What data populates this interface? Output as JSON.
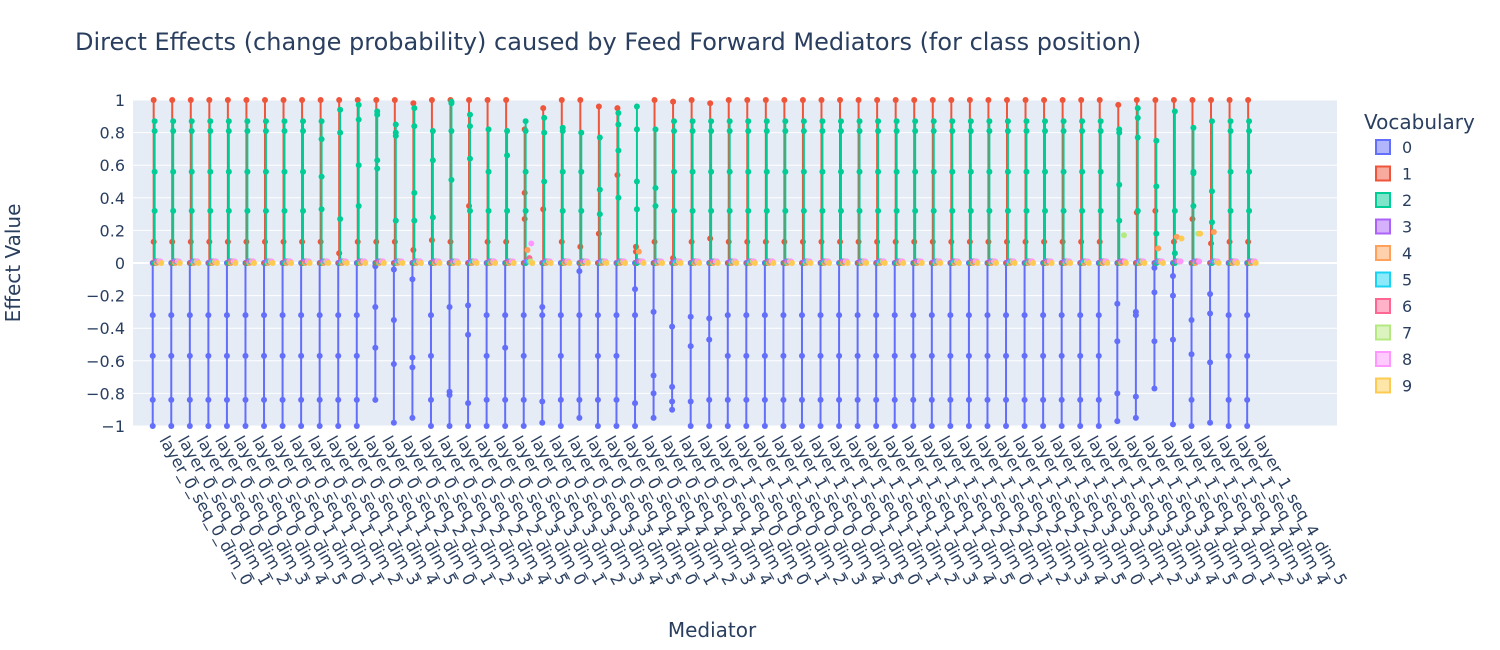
{
  "chart_data": {
    "type": "scatter",
    "title": "Direct Effects (change probability) caused by Feed Forward Mediators (for class position)",
    "xlabel": "Mediator",
    "ylabel": "Effect Value",
    "ylim": [
      -1,
      1
    ],
    "yticks": [
      -1,
      -0.8,
      -0.6,
      -0.4,
      -0.2,
      0,
      0.2,
      0.4,
      0.6,
      0.8,
      1
    ],
    "ytick_labels": [
      "−1",
      "−0.8",
      "−0.6",
      "−0.4",
      "−0.2",
      "0",
      "0.2",
      "0.4",
      "0.6",
      "0.8",
      "1"
    ],
    "grid": true,
    "legend_title": "Vocabulary",
    "legend_position": "right",
    "categories": [
      "layer_0_seq_0_dim_0",
      "layer_0_seq_0_dim_1",
      "layer_0_seq_0_dim_2",
      "layer_0_seq_0_dim_3",
      "layer_0_seq_0_dim_4",
      "layer_0_seq_0_dim_5",
      "layer_0_seq_1_dim_0",
      "layer_0_seq_1_dim_1",
      "layer_0_seq_1_dim_2",
      "layer_0_seq_1_dim_3",
      "layer_0_seq_1_dim_4",
      "layer_0_seq_1_dim_5",
      "layer_0_seq_2_dim_0",
      "layer_0_seq_2_dim_1",
      "layer_0_seq_2_dim_2",
      "layer_0_seq_2_dim_3",
      "layer_0_seq_2_dim_4",
      "layer_0_seq_2_dim_5",
      "layer_0_seq_3_dim_0",
      "layer_0_seq_3_dim_1",
      "layer_0_seq_3_dim_2",
      "layer_0_seq_3_dim_3",
      "layer_0_seq_3_dim_4",
      "layer_0_seq_3_dim_5",
      "layer_0_seq_4_dim_0",
      "layer_0_seq_4_dim_1",
      "layer_0_seq_4_dim_2",
      "layer_0_seq_4_dim_3",
      "layer_0_seq_4_dim_4",
      "layer_0_seq_4_dim_5",
      "layer_1_seq_0_dim_0",
      "layer_1_seq_0_dim_1",
      "layer_1_seq_0_dim_2",
      "layer_1_seq_0_dim_3",
      "layer_1_seq_0_dim_4",
      "layer_1_seq_0_dim_5",
      "layer_1_seq_1_dim_0",
      "layer_1_seq_1_dim_1",
      "layer_1_seq_1_dim_2",
      "layer_1_seq_1_dim_3",
      "layer_1_seq_1_dim_4",
      "layer_1_seq_1_dim_5",
      "layer_1_seq_2_dim_0",
      "layer_1_seq_2_dim_1",
      "layer_1_seq_2_dim_2",
      "layer_1_seq_2_dim_3",
      "layer_1_seq_2_dim_4",
      "layer_1_seq_2_dim_5",
      "layer_1_seq_3_dim_0",
      "layer_1_seq_3_dim_1",
      "layer_1_seq_3_dim_2",
      "layer_1_seq_3_dim_3",
      "layer_1_seq_3_dim_4",
      "layer_1_seq_3_dim_5",
      "layer_1_seq_4_dim_0",
      "layer_1_seq_4_dim_1",
      "layer_1_seq_4_dim_2",
      "layer_1_seq_4_dim_3",
      "layer_1_seq_4_dim_4",
      "layer_1_seq_4_dim_5"
    ],
    "series": [
      {
        "name": "0",
        "color": "#636efa",
        "default": [
          0,
          -0.32,
          -0.57,
          -0.84,
          -1
        ],
        "overrides": {
          "12": [
            0,
            -0.02,
            -0.27,
            -0.52,
            -0.84
          ],
          "13": [
            0,
            -0.04,
            -0.35,
            -0.62,
            -0.98
          ],
          "14": [
            0,
            -0.1,
            -0.58,
            -0.64,
            -0.95
          ],
          "16": [
            0,
            -0.27,
            -0.79,
            -0.81,
            -1
          ],
          "17": [
            0,
            -0.26,
            -0.44,
            -0.86,
            -1
          ],
          "19": [
            0,
            -0.52,
            -0.32,
            -0.84,
            -1
          ],
          "21": [
            0,
            -0.27,
            -0.32,
            -0.85,
            -0.98
          ],
          "23": [
            0,
            -0.05,
            -0.32,
            -0.84,
            -0.95
          ],
          "26": [
            0,
            -0.16,
            -0.32,
            -0.86,
            -1
          ],
          "27": [
            0,
            -0.3,
            -0.69,
            -0.8,
            -0.95
          ],
          "28": [
            0,
            -0.39,
            -0.76,
            -0.85,
            -0.9
          ],
          "29": [
            0,
            -0.33,
            -0.51,
            -0.85,
            -1
          ],
          "30": [
            0,
            -0.34,
            -0.47,
            -0.84,
            -1
          ],
          "52": [
            0,
            -0.25,
            -0.48,
            -0.8,
            -0.97
          ],
          "53": [
            0,
            -0.3,
            -0.32,
            -0.82,
            -0.95
          ],
          "54": [
            0,
            -0.03,
            -0.18,
            -0.48,
            -0.77
          ],
          "55": [
            0,
            -0.08,
            -0.2,
            -0.47,
            -0.99
          ],
          "56": [
            0,
            -0.35,
            -0.56,
            -0.84,
            -1
          ],
          "57": [
            0,
            -0.19,
            -0.31,
            -0.61,
            -0.98
          ]
        }
      },
      {
        "name": "1",
        "color": "#ef553b",
        "default": [
          0,
          0.13,
          1
        ],
        "overrides": {
          "10": [
            0,
            0.06,
            1
          ],
          "14": [
            0,
            0.08,
            0.98
          ],
          "15": [
            0,
            0.14,
            1
          ],
          "17": [
            0,
            0.35,
            1
          ],
          "20": [
            0,
            0.27,
            0.43,
            0.82
          ],
          "21": [
            0,
            0.33,
            0.95
          ],
          "23": [
            0,
            0.1,
            1
          ],
          "24": [
            0,
            0.18,
            0.96
          ],
          "25": [
            0,
            0.54,
            0.95
          ],
          "26": [
            0,
            0.07,
            0.1
          ],
          "28": [
            0,
            0.03,
            0.99
          ],
          "30": [
            0,
            0.15,
            0.98
          ],
          "52": [
            0,
            0.97
          ],
          "53": [
            0,
            0.31,
            1
          ],
          "54": [
            0,
            0.32,
            1
          ],
          "56": [
            0,
            0.27,
            1
          ],
          "57": [
            0,
            0.12,
            1
          ]
        }
      },
      {
        "name": "2",
        "color": "#00cc96",
        "default": [
          0,
          0.32,
          0.56,
          0.81,
          0.87
        ],
        "overrides": {
          "9": [
            0,
            0.33,
            0.53,
            0.76,
            0.87
          ],
          "10": [
            0,
            0.27,
            0.8,
            0.94
          ],
          "11": [
            0,
            0.35,
            0.6,
            0.88,
            0.97
          ],
          "12": [
            0,
            0.63,
            0.58,
            0.93,
            0.91
          ],
          "13": [
            0,
            0.26,
            0.78,
            0.8,
            0.85
          ],
          "14": [
            0,
            0.43,
            0.26,
            0.84,
            0.95
          ],
          "15": [
            0,
            0.28,
            0.63,
            0.81
          ],
          "16": [
            0,
            0.51,
            0.81,
            0.99,
            0.98
          ],
          "17": [
            0,
            0.32,
            0.64,
            0.84,
            0.91
          ],
          "18": [
            0,
            0.32,
            0.56,
            0.82
          ],
          "19": [
            0,
            0.32,
            0.66,
            0.81
          ],
          "20": [
            0,
            0.32,
            0.56,
            0.81,
            0.87
          ],
          "21": [
            0,
            0.5,
            0.8,
            0.89
          ],
          "22": [
            0,
            0.32,
            0.56,
            0.81,
            0.83
          ],
          "23": [
            0,
            0.32,
            0.56,
            0.8
          ],
          "24": [
            0,
            0.3,
            0.45,
            0.77
          ],
          "25": [
            0,
            0.4,
            0.69,
            0.85,
            0.92
          ],
          "26": [
            0,
            0.33,
            0.5,
            0.82,
            0.96
          ],
          "27": [
            0,
            0.35,
            0.46,
            0.82
          ],
          "28": [
            0,
            0.32,
            0.56,
            0.81,
            0.87
          ],
          "52": [
            0,
            0.26,
            0.48,
            0.8,
            0.82
          ],
          "53": [
            0,
            0.32,
            0.77,
            0.89,
            0.95
          ],
          "54": [
            0,
            0.18,
            0.47,
            0.75
          ],
          "55": [
            0,
            0.06,
            0.32,
            0.93
          ],
          "56": [
            0,
            0.35,
            0.55,
            0.56,
            0.83
          ],
          "57": [
            0,
            0.25,
            0.44,
            0.87
          ]
        }
      },
      {
        "name": "3",
        "color": "#ab63fa",
        "default": [
          0.01
        ],
        "overrides": {}
      },
      {
        "name": "4",
        "color": "#ffa15a",
        "default": [
          0
        ],
        "overrides": {
          "20": [
            0.08
          ],
          "26": [
            0.07
          ],
          "54": [
            0.09
          ],
          "55": [
            0.16
          ],
          "57": [
            0.19
          ]
        }
      },
      {
        "name": "5",
        "color": "#19d3f3",
        "default": [
          0.01
        ],
        "overrides": {}
      },
      {
        "name": "6",
        "color": "#ff6692",
        "default": [
          0.01
        ],
        "overrides": {
          "20": [
            0.03
          ]
        }
      },
      {
        "name": "7",
        "color": "#b6e880",
        "default": [
          0.01
        ],
        "overrides": {
          "52": [
            0.17
          ],
          "56": [
            0.18
          ]
        }
      },
      {
        "name": "8",
        "color": "#ff97ff",
        "default": [
          0.01
        ],
        "overrides": {
          "20": [
            0.12
          ]
        }
      },
      {
        "name": "9",
        "color": "#fecb52",
        "default": [
          0
        ],
        "overrides": {
          "55": [
            0.15
          ],
          "56": [
            0.18
          ]
        }
      }
    ]
  }
}
